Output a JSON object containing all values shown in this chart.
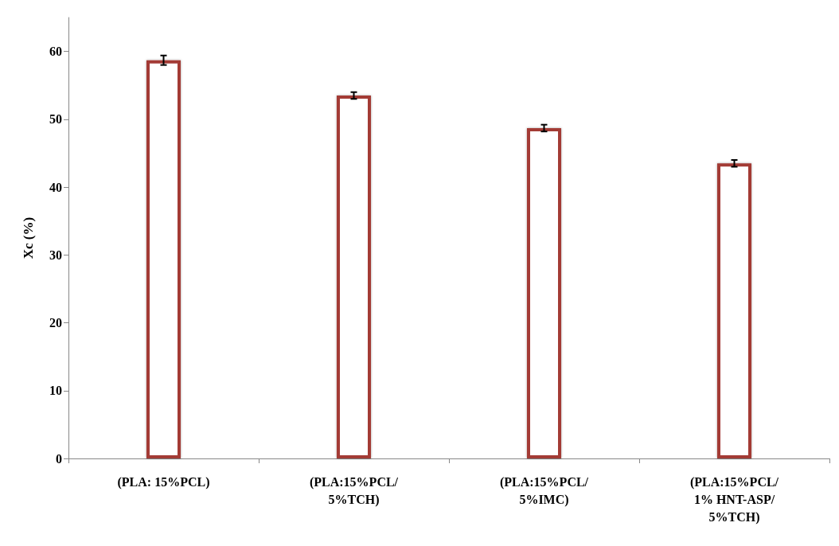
{
  "chart_data": {
    "type": "bar",
    "ylabel": "Xc (%)",
    "categories": [
      "(PLA: 15%PCL)",
      "(PLA:15%PCL/\n5%TCH)",
      "(PLA:15%PCL/\n5%IMC)",
      "(PLA:15%PCL/\n1% HNT-ASP/\n5%TCH)"
    ],
    "values": [
      58.7,
      53.5,
      48.7,
      43.5
    ],
    "errors": [
      0.7,
      0.5,
      0.5,
      0.5
    ],
    "color": "#a33a36",
    "ylim": [
      0,
      65
    ],
    "yticks": [
      0,
      10,
      20,
      30,
      40,
      50,
      60
    ],
    "grid": false
  }
}
